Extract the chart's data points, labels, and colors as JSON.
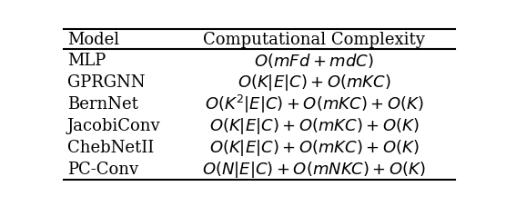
{
  "header": [
    "Model",
    "Computational Complexity"
  ],
  "rows": [
    [
      "MLP",
      "$O(mFd + mdC)$"
    ],
    [
      "GPRGNN",
      "$O(K|E|C) + O(mKC)$"
    ],
    [
      "BernNet",
      "$O(K^2|E|C) + O(mKC) + O(K)$"
    ],
    [
      "JacobiConv",
      "$O(K|E|C) + O(mKC) + O(K)$"
    ],
    [
      "ChebNetII",
      "$O(K|E|C) + O(mKC) + O(K)$"
    ],
    [
      "PC-Conv",
      "$O(N|E|C) + O(mNKC) + O(K)$"
    ]
  ],
  "col_split": 0.28,
  "header_fontsize": 13,
  "row_fontsize": 13,
  "bg_color": "#ffffff",
  "text_color": "#000000",
  "line_color": "#000000",
  "thick_lw": 1.5,
  "thin_lw": 0.8
}
